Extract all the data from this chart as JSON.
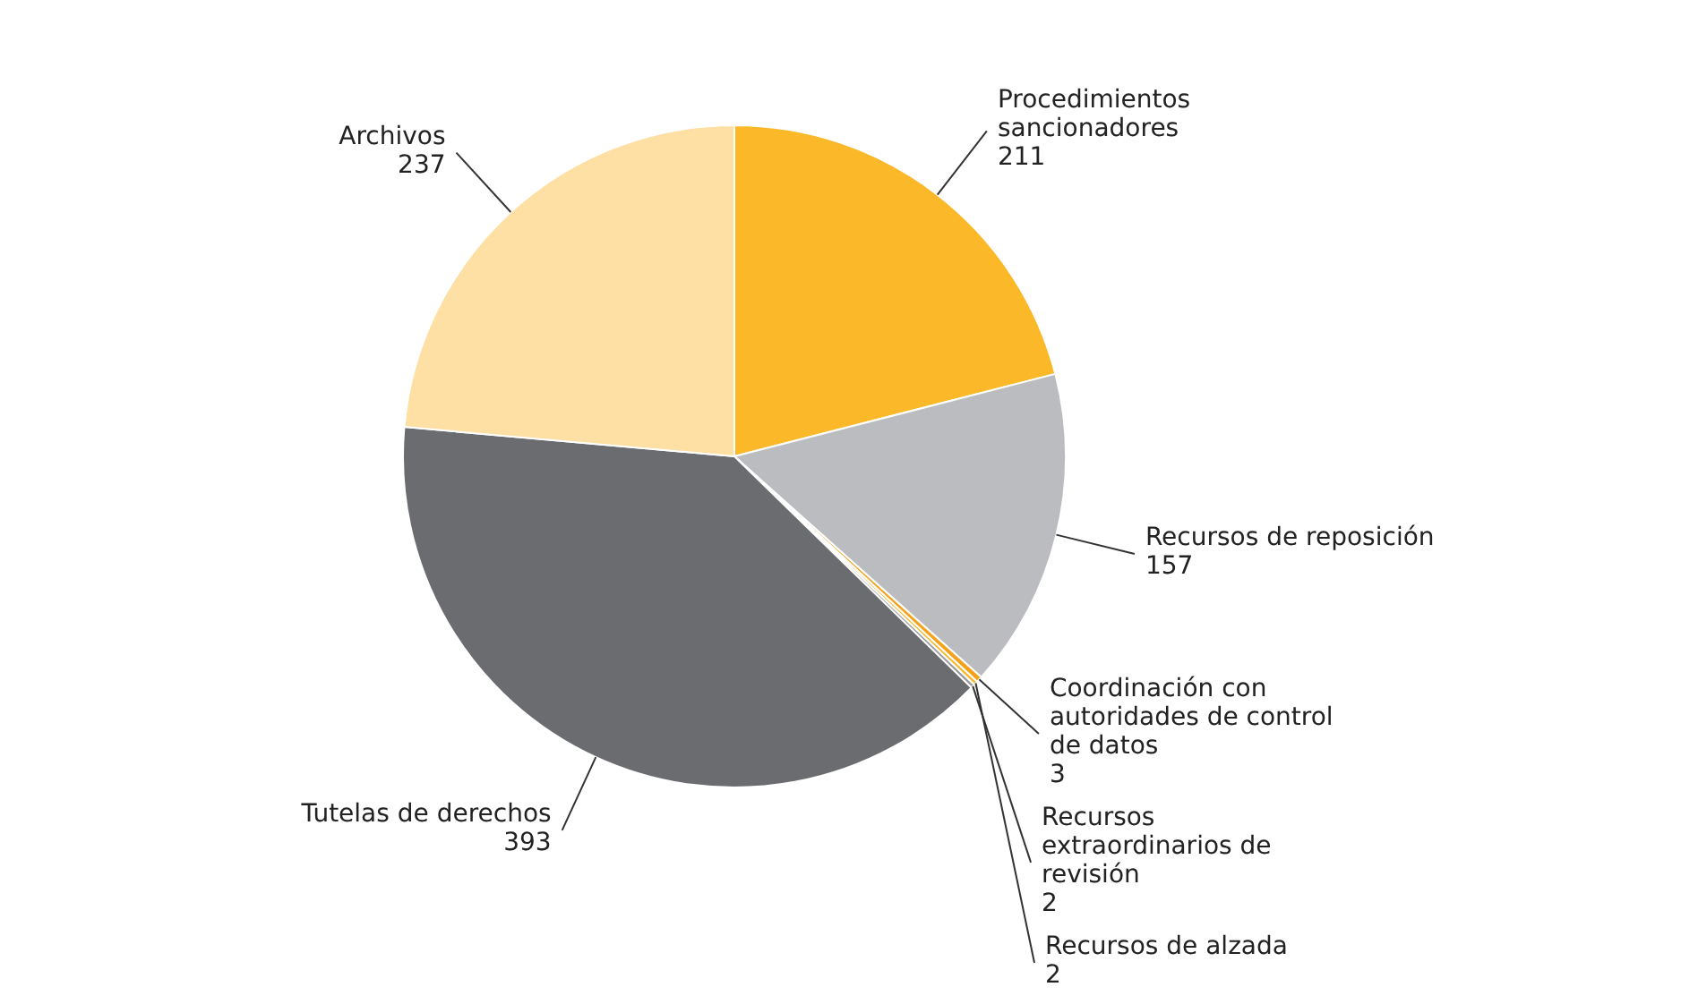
{
  "chart_data": {
    "type": "pie",
    "categories": [
      "Procedimientos sancionadores",
      "Recursos de reposición",
      "Coordinación con autoridades de control de datos",
      "Recursos de alzada",
      "Recursos extraordinarios de revisión",
      "Tutelas de derechos",
      "Archivos"
    ],
    "values": [
      211,
      157,
      3,
      2,
      2,
      393,
      237
    ],
    "colors": [
      "#fbb829",
      "#bbbcbf",
      "#f4a21c",
      "#fbb829",
      "#9a9b9e",
      "#6b6c70",
      "#fedfa4"
    ],
    "data_labels": true
  }
}
